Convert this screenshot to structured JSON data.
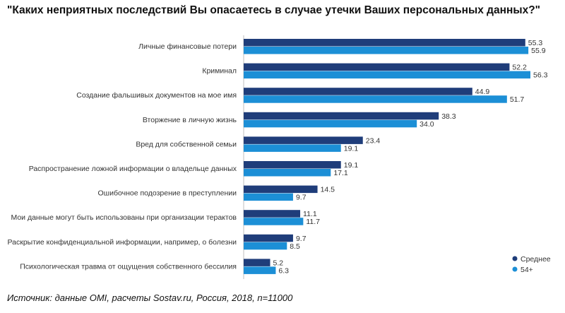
{
  "chart_data": {
    "type": "bar",
    "orientation": "horizontal",
    "title": "\"Каких неприятных последствий Вы опасаетесь в случае утечки Ваших персональных данных?\"",
    "categories": [
      "Личные финансовые потери",
      "Криминал",
      "Создание фальшивых документов на мое имя",
      "Вторжение в личную жизнь",
      "Вред для собственной семьи",
      "Распространение ложной информации о владельце данных",
      "Ошибочное подозрение в преступлении",
      "Мои данные могут быть использованы при организации терактов",
      "Раскрытие конфиденциальной информации, например, о болезни",
      "Психологическая травма от ощущения собственного бессилия"
    ],
    "series": [
      {
        "name": "Среднее",
        "color": "#1f3d7a",
        "values": [
          55.3,
          52.2,
          44.9,
          38.3,
          23.4,
          19.1,
          14.5,
          11.1,
          9.7,
          5.2
        ],
        "value_labels": [
          "55.3",
          "52.2",
          "44.9",
          "38.3",
          "23.4",
          "19.1",
          "14.5",
          "11.1",
          "9.7",
          "5.2"
        ]
      },
      {
        "name": "54+",
        "color": "#1c8fd6",
        "values": [
          55.9,
          56.3,
          51.7,
          34.0,
          19.1,
          17.1,
          9.7,
          11.7,
          8.5,
          6.3
        ],
        "value_labels": [
          "55.9",
          "56.3",
          "51.7",
          "34.0",
          "19.1",
          "17.1",
          "9.7",
          "11.7",
          "8.5",
          "6.3"
        ]
      }
    ],
    "xlim": [
      0,
      56.3
    ],
    "grid": false,
    "legend": "bottom-right"
  },
  "source": "Источник: данные OMI, расчеты Sostav.ru, Россия, 2018, n=11000"
}
